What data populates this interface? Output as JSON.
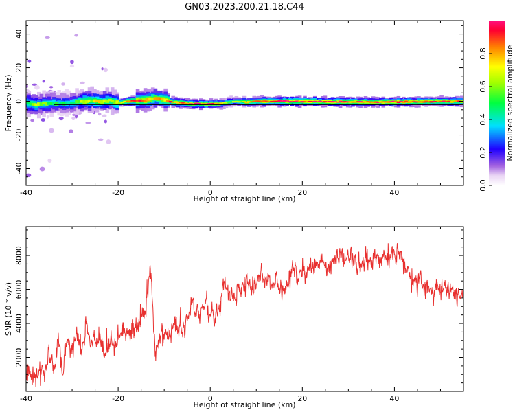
{
  "title": "GN03.2023.200.21.18.C44",
  "chart_data": [
    {
      "type": "heatmap",
      "name": "spectrogram",
      "xlabel": "Height of straight line (km)",
      "ylabel": "Frequency (Hz)",
      "xlim": [
        -40,
        55
      ],
      "ylim": [
        -50,
        48
      ],
      "xticks": [
        -40,
        -20,
        0,
        20,
        40
      ],
      "yticks": [
        -40,
        -20,
        0,
        20,
        40
      ],
      "colorbar": {
        "label": "Normalized spectral amplitude",
        "range": [
          0,
          1
        ],
        "ticks": [
          "0.0",
          "0.2",
          "0.4",
          "0.6",
          "0.8"
        ]
      },
      "ridge": [
        [
          -40,
          -1,
          0.55
        ],
        [
          -38,
          -2,
          0.6
        ],
        [
          -36,
          -1.5,
          0.55
        ],
        [
          -34,
          -1,
          0.5
        ],
        [
          -32,
          -1.5,
          0.45
        ],
        [
          -30,
          -1,
          0.5
        ],
        [
          -28,
          0,
          0.6
        ],
        [
          -26,
          0.5,
          0.65
        ],
        [
          -24,
          0,
          0.7
        ],
        [
          -22,
          0.5,
          0.6
        ],
        [
          -20,
          -1,
          0.7
        ],
        [
          -18,
          0,
          0.8
        ],
        [
          -16,
          0.5,
          0.9
        ],
        [
          -14,
          0.5,
          0.85
        ],
        [
          -12,
          2,
          0.75
        ],
        [
          -10,
          1,
          0.8
        ],
        [
          -8,
          -0.5,
          0.85
        ],
        [
          -6,
          -1,
          0.9
        ],
        [
          -4,
          -1.5,
          0.95
        ],
        [
          -2,
          -1.5,
          0.95
        ],
        [
          0,
          -1.5,
          0.9
        ],
        [
          2,
          -1.5,
          0.85
        ],
        [
          4,
          -0.5,
          0.6
        ],
        [
          6,
          0,
          0.65
        ],
        [
          8,
          -0.5,
          0.7
        ],
        [
          10,
          0,
          0.8
        ],
        [
          12,
          0,
          0.9
        ],
        [
          16,
          0,
          0.95
        ],
        [
          20,
          0,
          0.95
        ],
        [
          25,
          -0.2,
          0.95
        ],
        [
          30,
          -0.3,
          0.92
        ],
        [
          35,
          -0.5,
          0.9
        ],
        [
          40,
          -0.3,
          0.92
        ],
        [
          45,
          -0.2,
          0.9
        ],
        [
          50,
          0,
          0.88
        ],
        [
          55,
          0,
          0.85
        ]
      ]
    },
    {
      "type": "line",
      "name": "snr",
      "xlabel": "Height of straight line (km)",
      "ylabel": "SNR (10 * v/v)",
      "xlim": [
        -40,
        55
      ],
      "ylim": [
        0,
        9700
      ],
      "xticks": [
        -40,
        -20,
        0,
        20,
        40
      ],
      "yticks": [
        2000,
        4000,
        6000,
        8000
      ],
      "color": "#e8302f",
      "envelope": [
        [
          -40,
          1100
        ],
        [
          -38,
          900
        ],
        [
          -36,
          1000
        ],
        [
          -35,
          2000
        ],
        [
          -34,
          1300
        ],
        [
          -33,
          2800
        ],
        [
          -32,
          1200
        ],
        [
          -31,
          3000
        ],
        [
          -30,
          2500
        ],
        [
          -29,
          3300
        ],
        [
          -28,
          2200
        ],
        [
          -27,
          3600
        ],
        [
          -26,
          3000
        ],
        [
          -25,
          2600
        ],
        [
          -24,
          3400
        ],
        [
          -23,
          2100
        ],
        [
          -22,
          3000
        ],
        [
          -21,
          2700
        ],
        [
          -20,
          3200
        ],
        [
          -19,
          3800
        ],
        [
          -18,
          3300
        ],
        [
          -17,
          3700
        ],
        [
          -16,
          3500
        ],
        [
          -15,
          4300
        ],
        [
          -14,
          4800
        ],
        [
          -13,
          7500
        ],
        [
          -12,
          2300
        ],
        [
          -11,
          3000
        ],
        [
          -10,
          3400
        ],
        [
          -9,
          3600
        ],
        [
          -8,
          4000
        ],
        [
          -7,
          3700
        ],
        [
          -6,
          3500
        ],
        [
          -5,
          4300
        ],
        [
          -4,
          4900
        ],
        [
          -3,
          4600
        ],
        [
          -2,
          4900
        ],
        [
          -1,
          5200
        ],
        [
          0,
          4700
        ],
        [
          1,
          4300
        ],
        [
          2,
          5000
        ],
        [
          3,
          6300
        ],
        [
          4,
          5800
        ],
        [
          5,
          5400
        ],
        [
          6,
          5800
        ],
        [
          7,
          6200
        ],
        [
          8,
          6800
        ],
        [
          9,
          5900
        ],
        [
          10,
          6300
        ],
        [
          11,
          6700
        ],
        [
          12,
          6400
        ],
        [
          13,
          6200
        ],
        [
          14,
          6700
        ],
        [
          15,
          6000
        ],
        [
          16,
          6100
        ],
        [
          17,
          6300
        ],
        [
          18,
          7600
        ],
        [
          19,
          6800
        ],
        [
          20,
          7000
        ],
        [
          22,
          7300
        ],
        [
          24,
          7600
        ],
        [
          26,
          7400
        ],
        [
          28,
          8200
        ],
        [
          30,
          7800
        ],
        [
          32,
          7300
        ],
        [
          34,
          7600
        ],
        [
          36,
          8000
        ],
        [
          38,
          7800
        ],
        [
          40,
          8000
        ],
        [
          41,
          8200
        ],
        [
          42,
          7400
        ],
        [
          44,
          6700
        ],
        [
          46,
          6100
        ],
        [
          48,
          6000
        ],
        [
          50,
          6300
        ],
        [
          52,
          6100
        ],
        [
          54,
          5500
        ],
        [
          55,
          5800
        ]
      ],
      "noise_amplitude": 700
    }
  ]
}
